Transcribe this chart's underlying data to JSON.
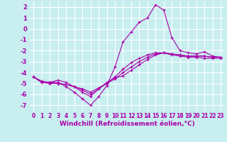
{
  "background_color": "#c8eef0",
  "grid_color": "#ffffff",
  "line_color": "#aa00aa",
  "xlabel": "Windchill (Refroidissement éolien,°C)",
  "xlabel_fontsize": 6.5,
  "xtick_fontsize": 5.5,
  "ytick_fontsize": 6,
  "xlim": [
    -0.5,
    23.5
  ],
  "ylim": [
    -7.5,
    2.5
  ],
  "yticks": [
    -7,
    -6,
    -5,
    -4,
    -3,
    -2,
    -1,
    0,
    1,
    2
  ],
  "xticks": [
    0,
    1,
    2,
    3,
    4,
    5,
    6,
    7,
    8,
    9,
    10,
    11,
    12,
    13,
    14,
    15,
    16,
    17,
    18,
    19,
    20,
    21,
    22,
    23
  ],
  "series": [
    {
      "x": [
        0,
        1,
        2,
        3,
        4,
        5,
        6,
        7,
        8,
        9,
        10,
        11,
        12,
        13,
        14,
        15,
        16,
        17,
        18,
        19,
        20,
        21,
        22,
        23
      ],
      "y": [
        -4.4,
        -4.9,
        -4.9,
        -4.9,
        -5.3,
        -5.8,
        -6.4,
        -7.0,
        -6.2,
        -5.2,
        -3.5,
        -1.2,
        -0.3,
        0.6,
        1.0,
        2.2,
        1.7,
        -0.8,
        -2.0,
        -2.2,
        -2.3,
        -2.1,
        -2.5,
        -2.6
      ]
    },
    {
      "x": [
        0,
        1,
        2,
        3,
        4,
        5,
        6,
        7,
        8,
        9,
        10,
        11,
        12,
        13,
        14,
        15,
        16,
        17,
        18,
        19,
        20,
        21,
        22,
        23
      ],
      "y": [
        -4.4,
        -4.9,
        -4.9,
        -4.7,
        -4.9,
        -5.3,
        -5.8,
        -6.2,
        -5.5,
        -4.9,
        -4.5,
        -4.3,
        -3.8,
        -3.3,
        -2.8,
        -2.4,
        -2.2,
        -2.4,
        -2.5,
        -2.6,
        -2.6,
        -2.7,
        -2.7,
        -2.7
      ]
    },
    {
      "x": [
        0,
        1,
        2,
        3,
        4,
        5,
        6,
        7,
        8,
        9,
        10,
        11,
        12,
        13,
        14,
        15,
        16,
        17,
        18,
        19,
        20,
        21,
        22,
        23
      ],
      "y": [
        -4.4,
        -4.8,
        -4.9,
        -5.0,
        -5.1,
        -5.3,
        -5.6,
        -6.0,
        -5.5,
        -5.0,
        -4.4,
        -3.7,
        -3.1,
        -2.7,
        -2.4,
        -2.2,
        -2.2,
        -2.3,
        -2.4,
        -2.5,
        -2.5,
        -2.5,
        -2.6,
        -2.6
      ]
    },
    {
      "x": [
        0,
        1,
        2,
        3,
        4,
        5,
        6,
        7,
        8,
        9,
        10,
        11,
        12,
        13,
        14,
        15,
        16,
        17,
        18,
        19,
        20,
        21,
        22,
        23
      ],
      "y": [
        -4.4,
        -4.9,
        -5.0,
        -5.0,
        -5.1,
        -5.3,
        -5.5,
        -5.8,
        -5.4,
        -5.0,
        -4.6,
        -4.0,
        -3.5,
        -3.0,
        -2.6,
        -2.3,
        -2.2,
        -2.3,
        -2.4,
        -2.5,
        -2.5,
        -2.5,
        -2.6,
        -2.6
      ]
    }
  ]
}
